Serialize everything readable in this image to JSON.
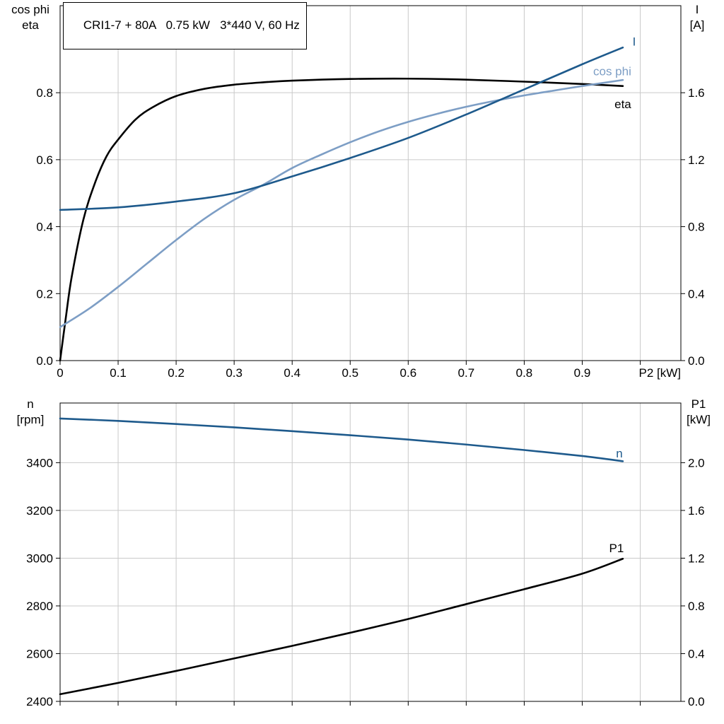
{
  "page": {
    "background": "#ffffff",
    "grid_color": "#c9c9c9",
    "frame_color": "#000000"
  },
  "chart_data": [
    {
      "type": "line",
      "title": "CRI1-7 + 80A   0.75 kW   3*440 V, 60 Hz",
      "grid": true,
      "x_axis": {
        "label": "P2 [kW]",
        "min": 0,
        "max": 1.07,
        "tick_values": [
          0,
          0.1,
          0.2,
          0.3,
          0.4,
          0.5,
          0.6,
          0.7,
          0.8,
          0.9
        ],
        "tick_labels": [
          "0",
          "0.1",
          "0.2",
          "0.3",
          "0.4",
          "0.5",
          "0.6",
          "0.7",
          "0.8",
          "0.9"
        ]
      },
      "y_left": {
        "title_lines": [
          "cos phi",
          "eta"
        ],
        "min": 0,
        "max": 1.06,
        "tick_values": [
          0,
          0.2,
          0.4,
          0.6,
          0.8
        ],
        "tick_labels": [
          "0.0",
          "0.2",
          "0.4",
          "0.6",
          "0.8"
        ]
      },
      "y_right": {
        "title_lines": [
          "I",
          "[A]"
        ],
        "min": 0,
        "max": 2.12,
        "tick_values": [
          0,
          0.4,
          0.8,
          1.2,
          1.6
        ],
        "tick_labels": [
          "0.0",
          "0.4",
          "0.8",
          "1.2",
          "1.6"
        ]
      },
      "series": [
        {
          "name": "eta",
          "label": "eta",
          "axis": "left",
          "color": "#000000",
          "x": [
            0,
            0.01,
            0.02,
            0.04,
            0.06,
            0.08,
            0.1,
            0.13,
            0.16,
            0.2,
            0.25,
            0.3,
            0.35,
            0.4,
            0.5,
            0.6,
            0.7,
            0.8,
            0.9,
            0.97
          ],
          "y": [
            0,
            0.13,
            0.25,
            0.42,
            0.53,
            0.61,
            0.66,
            0.72,
            0.757,
            0.79,
            0.812,
            0.824,
            0.831,
            0.836,
            0.841,
            0.842,
            0.839,
            0.833,
            0.826,
            0.82
          ]
        },
        {
          "name": "cos phi",
          "label": "cos phi",
          "axis": "left",
          "color": "#7d9ec5",
          "x": [
            0,
            0.05,
            0.1,
            0.15,
            0.2,
            0.25,
            0.3,
            0.35,
            0.4,
            0.45,
            0.5,
            0.55,
            0.6,
            0.65,
            0.7,
            0.75,
            0.8,
            0.85,
            0.9,
            0.97
          ],
          "y": [
            0.1,
            0.155,
            0.22,
            0.29,
            0.36,
            0.425,
            0.48,
            0.525,
            0.575,
            0.615,
            0.652,
            0.685,
            0.713,
            0.737,
            0.758,
            0.776,
            0.792,
            0.806,
            0.82,
            0.838
          ]
        },
        {
          "name": "I",
          "label": "I",
          "axis": "right",
          "color": "#1e5a8c",
          "x": [
            0,
            0.1,
            0.2,
            0.3,
            0.4,
            0.5,
            0.6,
            0.7,
            0.8,
            0.9,
            0.97
          ],
          "y": [
            0.9,
            0.915,
            0.95,
            1.0,
            1.1,
            1.21,
            1.33,
            1.47,
            1.62,
            1.77,
            1.87
          ]
        }
      ]
    },
    {
      "type": "line",
      "title": "",
      "grid": true,
      "x_axis": {
        "label": "",
        "min": 0,
        "max": 1.07,
        "tick_values": [
          0,
          0.1,
          0.2,
          0.3,
          0.4,
          0.5,
          0.6,
          0.7,
          0.8,
          0.9
        ],
        "tick_labels": [
          "",
          "",
          "",
          "",
          "",
          "",
          "",
          "",
          "",
          ""
        ]
      },
      "y_left": {
        "title_lines": [
          "n",
          "[rpm]"
        ],
        "min": 2400,
        "max": 3650,
        "tick_values": [
          2400,
          2600,
          2800,
          3000,
          3200,
          3400
        ],
        "tick_labels": [
          "2400",
          "2600",
          "2800",
          "3000",
          "3200",
          "3400"
        ]
      },
      "y_right": {
        "title_lines": [
          "P1",
          "[kW]"
        ],
        "min": 0,
        "max": 2.5,
        "tick_values": [
          0,
          0.4,
          0.8,
          1.2,
          1.6,
          2.0
        ],
        "tick_labels": [
          "0.0",
          "0.4",
          "0.8",
          "1.2",
          "1.6",
          "2.0"
        ]
      },
      "series": [
        {
          "name": "n",
          "label": "n",
          "axis": "left",
          "color": "#1e5a8c",
          "x": [
            0,
            0.1,
            0.2,
            0.3,
            0.4,
            0.5,
            0.6,
            0.7,
            0.8,
            0.9,
            0.97
          ],
          "y": [
            3585,
            3575,
            3562,
            3548,
            3532,
            3515,
            3497,
            3476,
            3453,
            3428,
            3406
          ]
        },
        {
          "name": "P1",
          "label": "P1",
          "axis": "right",
          "color": "#000000",
          "x": [
            0,
            0.1,
            0.2,
            0.3,
            0.4,
            0.5,
            0.6,
            0.7,
            0.8,
            0.9,
            0.97
          ],
          "y": [
            0.06,
            0.155,
            0.255,
            0.36,
            0.465,
            0.575,
            0.69,
            0.815,
            0.94,
            1.07,
            1.195
          ]
        }
      ]
    }
  ]
}
